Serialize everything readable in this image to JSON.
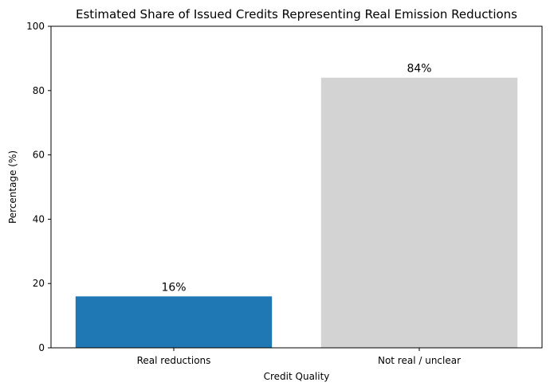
{
  "chart_data": {
    "type": "bar",
    "title": "Estimated Share of Issued Credits Representing Real Emission Reductions",
    "xlabel": "Credit Quality",
    "ylabel": "Percentage (%)",
    "categories": [
      "Real reductions",
      "Not real / unclear"
    ],
    "values": [
      16,
      84
    ],
    "data_labels": [
      "16%",
      "84%"
    ],
    "colors": [
      "#1f77b4",
      "#d3d3d3"
    ],
    "ylim": [
      0,
      100
    ],
    "yticks": [
      0,
      20,
      40,
      60,
      80,
      100
    ],
    "grid": false,
    "legend": "none"
  }
}
